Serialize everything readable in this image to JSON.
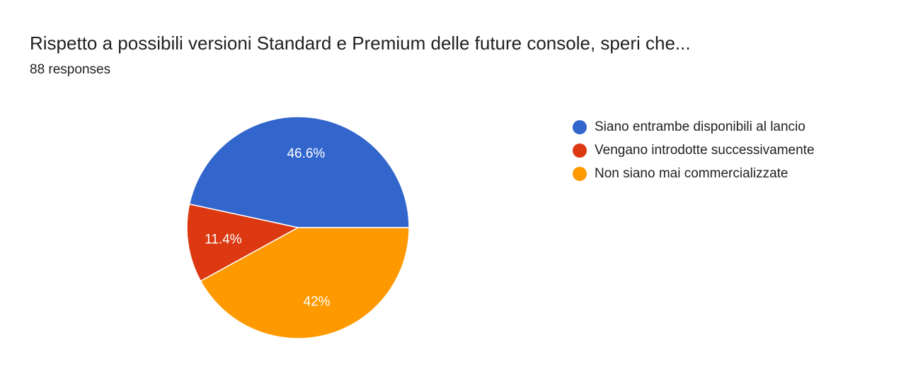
{
  "header": {
    "title": "Rispetto a possibili versioni Standard e Premium delle future console, speri che...",
    "responses": "88 responses"
  },
  "chart_data": {
    "type": "pie",
    "title": "Rispetto a possibili versioni Standard e Premium delle future console, speri che...",
    "categories": [
      "Siano entrambe disponibili al lancio",
      "Vengano introdotte successivamente",
      "Non siano mai commercializzate"
    ],
    "values": [
      46.6,
      11.4,
      42
    ],
    "labels": [
      "46.6%",
      "11.4%",
      "42%"
    ],
    "colors": [
      "#3366cc",
      "#dc3912",
      "#ff9900"
    ],
    "legend_position": "right"
  }
}
